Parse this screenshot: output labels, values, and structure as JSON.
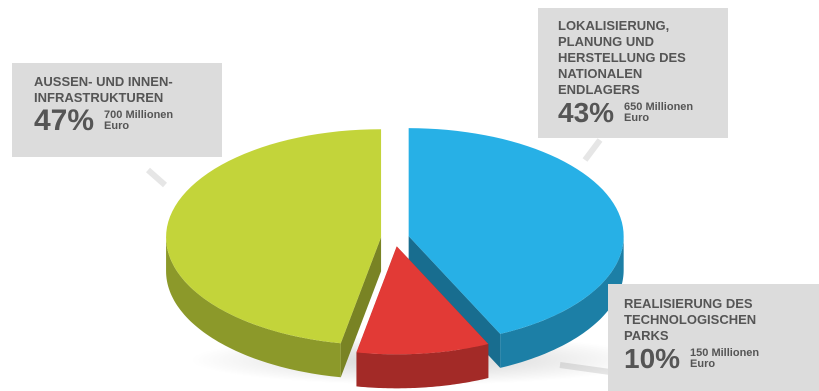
{
  "chart_data": {
    "type": "pie",
    "title": "",
    "slices": [
      {
        "label": "AUSSEN- UND INNEN-INFRASTRUKTUREN",
        "percent": 47,
        "amount": "700 Millionen Euro",
        "color": "#c3d43a"
      },
      {
        "label": "LOKALISIERUNG, PLANUNG UND HERSTELLUNG DES NATIONALEN ENDLAGERS",
        "percent": 43,
        "amount": "650 Millionen Euro",
        "color": "#27b0e6"
      },
      {
        "label": "REALISIERUNG DES TECHNOLOGISCHEN PARKS",
        "percent": 10,
        "amount": "150 Millionen Euro",
        "color": "#e23a36"
      }
    ]
  },
  "callouts": {
    "infra": {
      "label_lines": [
        "AUSSEN- UND INNEN-",
        "INFRASTRUKTUREN"
      ],
      "percent": "47%",
      "amount_lines": [
        "700 Millionen",
        "Euro"
      ]
    },
    "endlager": {
      "label_lines": [
        "LOKALISIERUNG,",
        "PLANUNG UND",
        "HERSTELLUNG DES",
        "NATIONALEN",
        "ENDLAGERS"
      ],
      "percent": "43%",
      "amount_lines": [
        "650 Millionen",
        "Euro"
      ]
    },
    "parks": {
      "label_lines": [
        "REALISIERUNG DES",
        "TECHNOLOGISCHEN",
        "PARKS"
      ],
      "percent": "10%",
      "amount_lines": [
        "150 Millionen",
        "Euro"
      ]
    }
  }
}
